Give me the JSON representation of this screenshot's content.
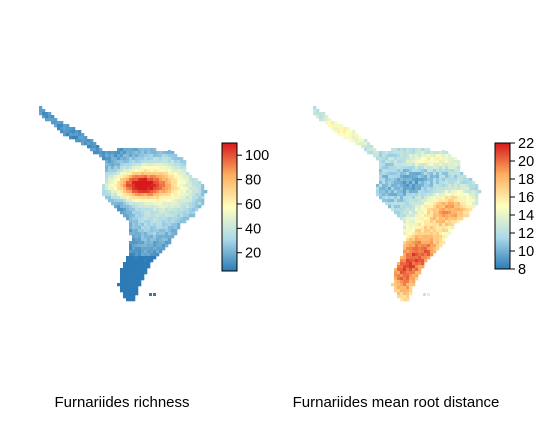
{
  "chart_data": [
    {
      "type": "heatmap",
      "title": "Furnariides richness",
      "map_region": "South and Central America",
      "colorbar": {
        "ticks": [
          20,
          40,
          60,
          80,
          100
        ],
        "range": [
          5,
          110
        ],
        "colors": [
          "#2c7bb6",
          "#abd9e9",
          "#ffffbf",
          "#fdae61",
          "#d7191c"
        ]
      },
      "pattern": "Highest richness (~100) in western Amazon basin; moderate (~50-70) across Brazil and northern South America; low (<20) in Central America, Andes and southern cone"
    },
    {
      "type": "heatmap",
      "title": "Furnariides mean root distance",
      "map_region": "South and Central America",
      "colorbar": {
        "ticks": [
          8,
          10,
          12,
          14,
          16,
          18,
          20,
          22
        ],
        "range": [
          8,
          22
        ],
        "colors": [
          "#2c7bb6",
          "#abd9e9",
          "#ffffbf",
          "#fdae61",
          "#d7191c"
        ]
      },
      "pattern": "Low values (~12) across Amazonia and northern South America; high values (~18-20) in eastern Brazil, the Chaco and southern South America; mid values in Central America"
    }
  ]
}
